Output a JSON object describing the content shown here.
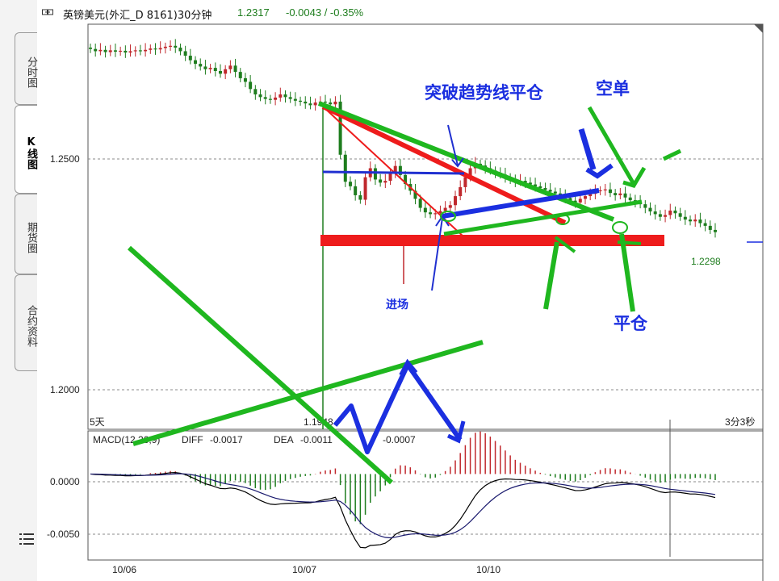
{
  "header": {
    "title": "英镑美元(外汇_D 8161)30分钟",
    "last_price": "1.2317",
    "change": "-0.0043 / -0.35%",
    "colors": {
      "up": "#c0282d",
      "down": "#1e7d1e",
      "price_text": "#1e7d1e"
    }
  },
  "sidebar": {
    "tabs": [
      {
        "label": "分时图",
        "active": false
      },
      {
        "label": "K线图",
        "active": true
      },
      {
        "label": "期货圈",
        "active": false
      },
      {
        "label": "合约资料",
        "active": false
      }
    ],
    "menu_icon": "menu-icon"
  },
  "chart_data": {
    "type": "candlestick",
    "y_ticks": [
      "1.2500",
      "1.2000"
    ],
    "x_ticks": [
      "10/06",
      "10/07",
      "10/10"
    ],
    "ylim": [
      1.186,
      1.276
    ],
    "grid": true,
    "period_label": "5天",
    "countdown_label": "3分3秒",
    "high_label": "",
    "low_label": "1.1948",
    "last_label": "1.2298",
    "series_closes": [
      1.2705,
      1.27,
      1.2703,
      1.2698,
      1.2702,
      1.2699,
      1.2701,
      1.2697,
      1.27,
      1.2702,
      1.27,
      1.2703,
      1.2706,
      1.2704,
      1.2707,
      1.271,
      1.2712,
      1.2708,
      1.27,
      1.269,
      1.268,
      1.2672,
      1.2666,
      1.266,
      1.2663,
      1.2656,
      1.265,
      1.266,
      1.2668,
      1.2654,
      1.264,
      1.2632,
      1.2616,
      1.2604,
      1.2598,
      1.2594,
      1.2592,
      1.2597,
      1.2604,
      1.2598,
      1.2594,
      1.259,
      1.2588,
      1.2584,
      1.258,
      1.2586,
      1.2588,
      1.2586,
      1.2582,
      1.2588,
      1.247,
      1.241,
      1.24,
      1.238,
      1.237,
      1.242,
      1.244,
      1.2415,
      1.2408,
      1.2412,
      1.243,
      1.2445,
      1.2425,
      1.2405,
      1.239,
      1.2372,
      1.2352,
      1.2342,
      1.2338,
      1.234,
      1.2345,
      1.2352,
      1.2358,
      1.2378,
      1.2398,
      1.242,
      1.244,
      1.245,
      1.2446,
      1.244,
      1.2435,
      1.243,
      1.2426,
      1.242,
      1.2414,
      1.241,
      1.2412,
      1.2408,
      1.2404,
      1.24,
      1.2396,
      1.2392,
      1.2388,
      1.2384,
      1.2378,
      1.2374,
      1.2368,
      1.2364,
      1.2372,
      1.2378,
      1.2383,
      1.2389,
      1.2391,
      1.2393,
      1.2385,
      1.238,
      1.2384,
      1.2375,
      1.2369,
      1.2365,
      1.236,
      1.2352,
      1.2344,
      1.2338,
      1.2332,
      1.2336,
      1.2346,
      1.234,
      1.2332,
      1.2326,
      1.2322,
      1.2326,
      1.2318,
      1.2312,
      1.2303,
      1.2298
    ],
    "indicator": {
      "name": "MACD(12,26,9)",
      "diff_label": "DIFF",
      "diff_value": "-0.0017",
      "dea_label": "DEA",
      "dea_value": "-0.0011",
      "macd_value": "-0.0007",
      "y_ticks": [
        "0.0000",
        "-0.0050"
      ],
      "ylim": [
        -0.0073,
        0.0027
      ],
      "colors": {
        "diff": "#000000",
        "dea": "#1a1a6e",
        "pos": "#c0282d",
        "neg": "#1e7d1e"
      }
    }
  },
  "annotations": {
    "break_trendline_close": "突破趋势线平仓",
    "short": "空单",
    "entry": "进场",
    "close_position": "平仓",
    "colors": {
      "red": "#ee1c1c",
      "green": "#1fb71f",
      "blue": "#1b2fe0",
      "thin_blue": "#2030d0"
    }
  }
}
